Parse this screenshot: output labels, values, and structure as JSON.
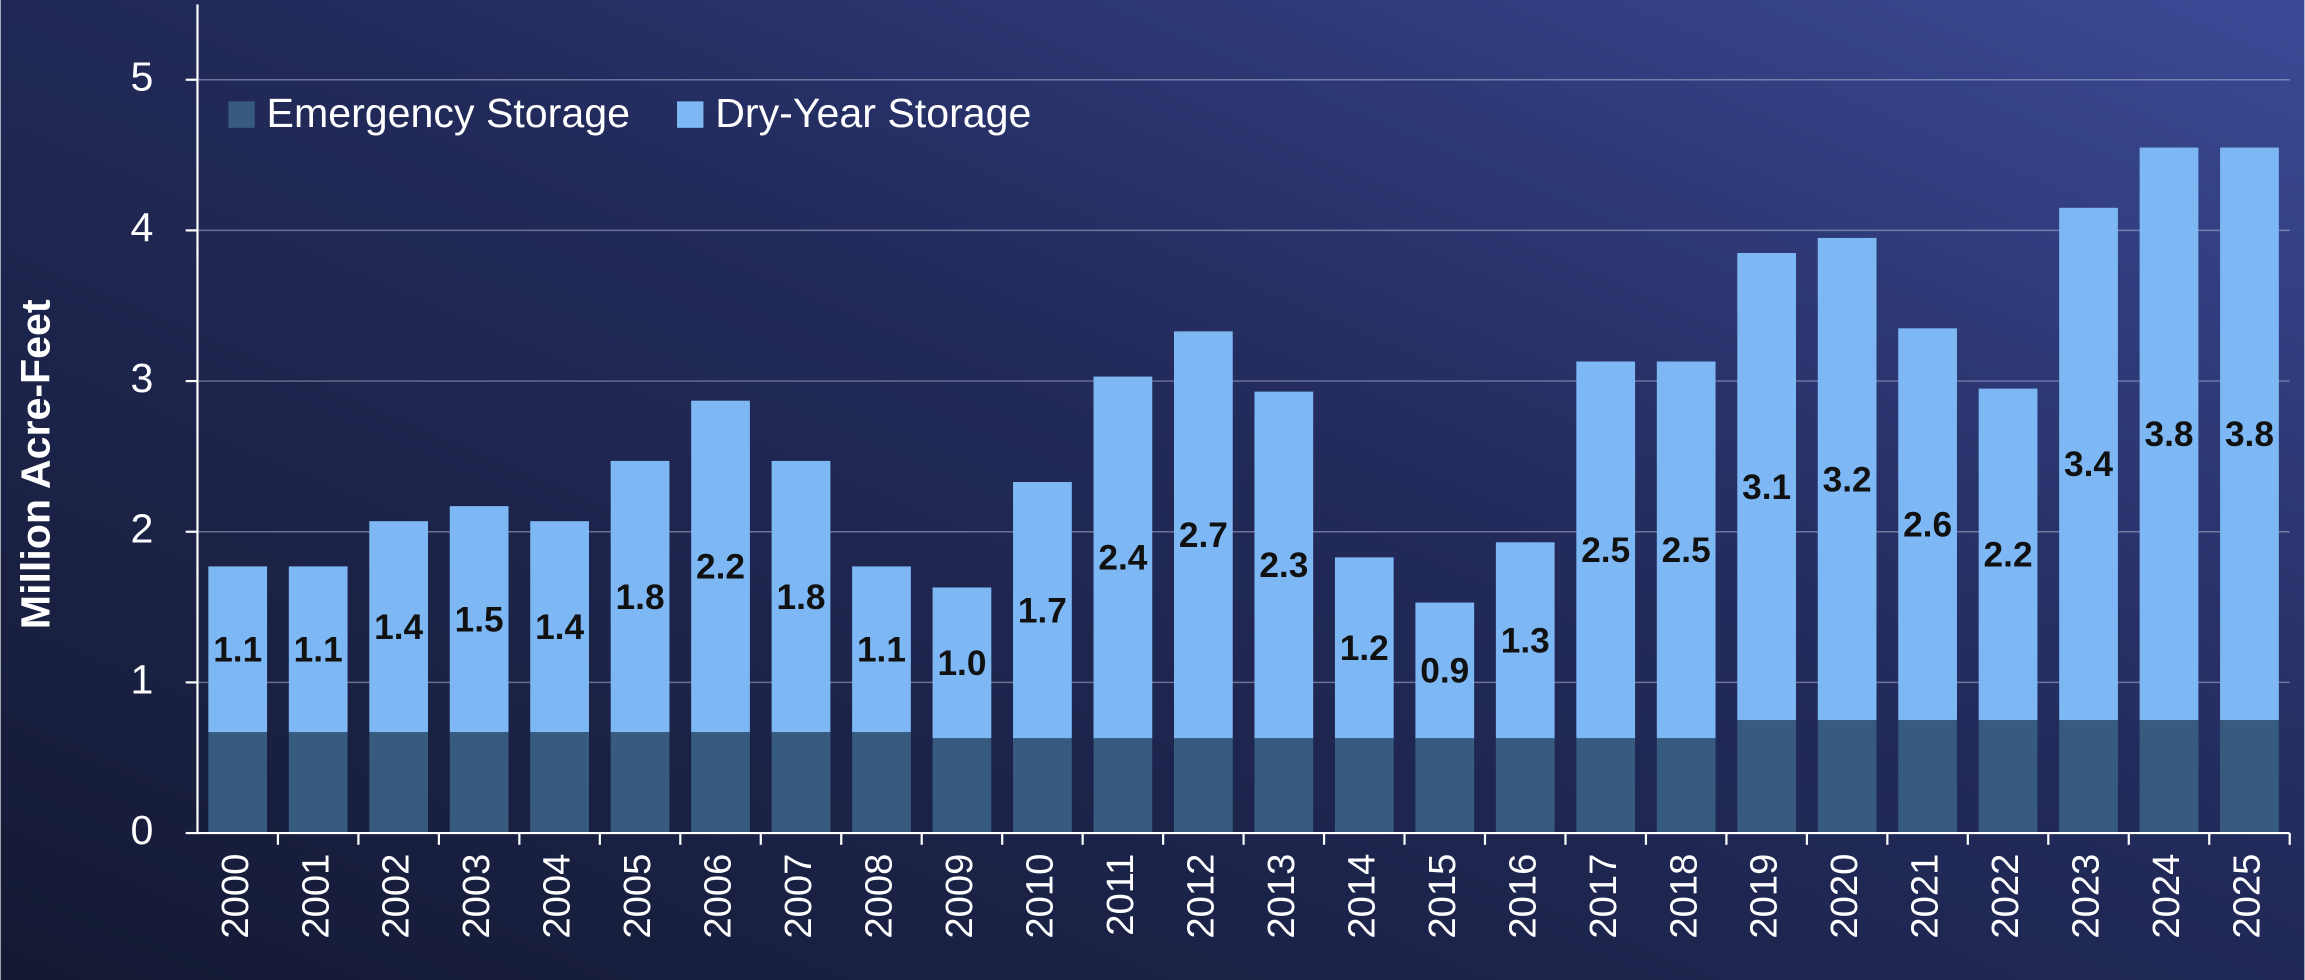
{
  "chart_data": {
    "type": "stacked_bar",
    "y_label": "Million Acre-Feet",
    "categories": [
      "2000",
      "2001",
      "2002",
      "2003",
      "2004",
      "2005",
      "2006",
      "2007",
      "2008",
      "2009",
      "2010",
      "2011",
      "2012",
      "2013",
      "2014",
      "2015",
      "2016",
      "2017",
      "2018",
      "2019",
      "2020",
      "2021",
      "2022",
      "2023",
      "2024",
      "2025"
    ],
    "series": [
      {
        "name": "Emergency Storage",
        "color": "#365b7e",
        "values": [
          0.67,
          0.67,
          0.67,
          0.67,
          0.67,
          0.67,
          0.67,
          0.67,
          0.67,
          0.63,
          0.63,
          0.63,
          0.63,
          0.63,
          0.63,
          0.63,
          0.63,
          0.63,
          0.63,
          0.75,
          0.75,
          0.75,
          0.75,
          0.75,
          0.75,
          0.75
        ]
      },
      {
        "name": "Dry-Year Storage",
        "color": "#7db8f5",
        "values": [
          1.1,
          1.1,
          1.4,
          1.5,
          1.4,
          1.8,
          2.2,
          1.8,
          1.1,
          1.0,
          1.7,
          2.4,
          2.7,
          2.3,
          1.2,
          0.9,
          1.3,
          2.5,
          2.5,
          3.1,
          3.2,
          2.6,
          2.2,
          3.4,
          3.8,
          3.8
        ],
        "value_labels": [
          "1.1",
          "1.1",
          "1.4",
          "1.5",
          "1.4",
          "1.8",
          "2.2",
          "1.8",
          "1.1",
          "1.0",
          "1.7",
          "2.4",
          "2.7",
          "2.3",
          "1.2",
          "0.9",
          "1.3",
          "2.5",
          "2.5",
          "3.1",
          "3.2",
          "2.6",
          "2.2",
          "3.4",
          "3.8",
          "3.8"
        ]
      }
    ],
    "ylim": [
      0,
      5.5
    ],
    "yticks": [
      0,
      1,
      2,
      3,
      4,
      5
    ],
    "grid": true,
    "legend": "top-left"
  }
}
